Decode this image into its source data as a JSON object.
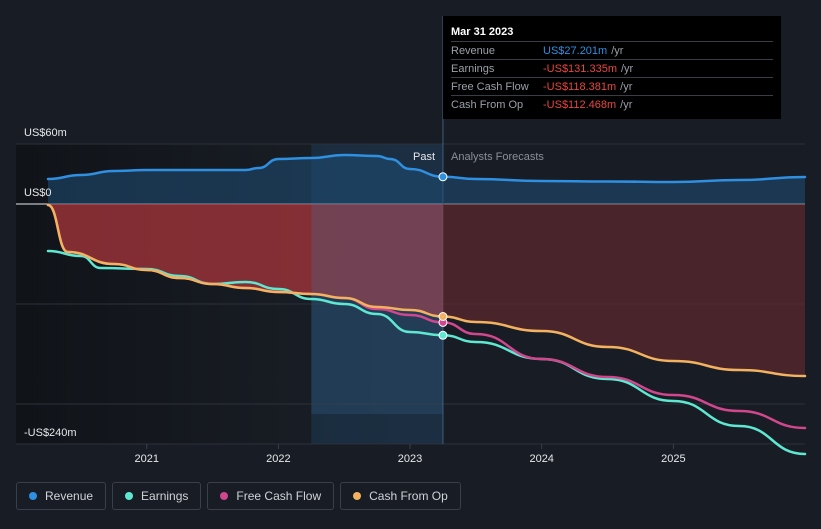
{
  "chart_data": {
    "type": "line",
    "y_unit_label_top": "US$60m",
    "y_unit_label_zero": "US$0",
    "y_unit_label_bottom": "-US$240m",
    "ylim": [
      -240,
      60
    ],
    "xlim": [
      2020.25,
      2026.0
    ],
    "x_ticks": [
      {
        "value": 2021,
        "label": "2021"
      },
      {
        "value": 2022,
        "label": "2022"
      },
      {
        "value": 2023,
        "label": "2023"
      },
      {
        "value": 2024,
        "label": "2024"
      },
      {
        "value": 2025,
        "label": "2025"
      }
    ],
    "gridlines_y": [
      60,
      0,
      -100,
      -200
    ],
    "highlight_range": [
      2022.25,
      2023.25
    ],
    "divider_x": 2023.25,
    "past_label": "Past",
    "forecast_label": "Analysts Forecasts",
    "series": [
      {
        "name": "Revenue",
        "color": "#2f8fe0",
        "fill": "area-top",
        "points": [
          [
            2020.25,
            25
          ],
          [
            2020.5,
            29
          ],
          [
            2020.75,
            33
          ],
          [
            2021.0,
            34
          ],
          [
            2021.25,
            34
          ],
          [
            2021.5,
            34
          ],
          [
            2021.75,
            34
          ],
          [
            2021.85,
            36
          ],
          [
            2022.0,
            45
          ],
          [
            2022.25,
            46
          ],
          [
            2022.5,
            49
          ],
          [
            2022.75,
            48
          ],
          [
            2022.85,
            45
          ],
          [
            2023.0,
            35
          ],
          [
            2023.25,
            27.2
          ],
          [
            2023.5,
            25
          ],
          [
            2024.0,
            23
          ],
          [
            2024.5,
            22.5
          ],
          [
            2025.0,
            22
          ],
          [
            2025.5,
            24
          ],
          [
            2026.0,
            27
          ]
        ]
      },
      {
        "name": "Earnings",
        "color": "#5ee8d2",
        "fill": "none",
        "points": [
          [
            2020.25,
            -47
          ],
          [
            2020.5,
            -52
          ],
          [
            2020.65,
            -64
          ],
          [
            2021.0,
            -65
          ],
          [
            2021.25,
            -72
          ],
          [
            2021.5,
            -80
          ],
          [
            2021.75,
            -78
          ],
          [
            2022.0,
            -85
          ],
          [
            2022.25,
            -95
          ],
          [
            2022.5,
            -100
          ],
          [
            2022.75,
            -110
          ],
          [
            2023.0,
            -128
          ],
          [
            2023.25,
            -131.3
          ],
          [
            2023.5,
            -138
          ],
          [
            2024.0,
            -155
          ],
          [
            2024.5,
            -175
          ],
          [
            2025.0,
            -197
          ],
          [
            2025.5,
            -222
          ],
          [
            2026.0,
            -250
          ]
        ]
      },
      {
        "name": "Free Cash Flow",
        "color": "#d1478e",
        "fill": "none",
        "points": [
          [
            2020.25,
            -1
          ],
          [
            2020.4,
            -48
          ],
          [
            2020.75,
            -60
          ],
          [
            2021.0,
            -66
          ],
          [
            2021.25,
            -74
          ],
          [
            2021.5,
            -80
          ],
          [
            2021.75,
            -84
          ],
          [
            2022.0,
            -88
          ],
          [
            2022.25,
            -90
          ],
          [
            2022.5,
            -94
          ],
          [
            2022.75,
            -105
          ],
          [
            2023.0,
            -111
          ],
          [
            2023.25,
            -118.4
          ],
          [
            2023.5,
            -130
          ],
          [
            2024.0,
            -155
          ],
          [
            2024.5,
            -173
          ],
          [
            2025.0,
            -191
          ],
          [
            2025.5,
            -207
          ],
          [
            2026.0,
            -224
          ]
        ]
      },
      {
        "name": "Cash From Op",
        "color": "#f2b260",
        "fill": "area-bottom",
        "points": [
          [
            2020.25,
            -1
          ],
          [
            2020.4,
            -48
          ],
          [
            2020.75,
            -60
          ],
          [
            2021.0,
            -66
          ],
          [
            2021.25,
            -74
          ],
          [
            2021.5,
            -80
          ],
          [
            2021.75,
            -84
          ],
          [
            2022.0,
            -88
          ],
          [
            2022.25,
            -90
          ],
          [
            2022.5,
            -94
          ],
          [
            2022.75,
            -103
          ],
          [
            2023.0,
            -106
          ],
          [
            2023.25,
            -112.5
          ],
          [
            2023.5,
            -118
          ],
          [
            2024.0,
            -127
          ],
          [
            2024.5,
            -143
          ],
          [
            2025.0,
            -157
          ],
          [
            2025.5,
            -166
          ],
          [
            2026.0,
            -172
          ]
        ]
      }
    ],
    "markers": [
      {
        "series": "Revenue",
        "x": 2023.25,
        "y": 27.2
      },
      {
        "series": "Earnings",
        "x": 2023.25,
        "y": -131.3
      },
      {
        "series": "Free Cash Flow",
        "x": 2023.25,
        "y": -118.4
      },
      {
        "series": "Cash From Op",
        "x": 2023.25,
        "y": -112.5
      }
    ]
  },
  "tooltip": {
    "date": "Mar 31 2023",
    "rows": [
      {
        "label": "Revenue",
        "value": "US$27.201m",
        "unit": "/yr",
        "color": "#2f8fe0"
      },
      {
        "label": "Earnings",
        "value": "-US$131.335m",
        "unit": "/yr",
        "color": "#e8473f"
      },
      {
        "label": "Free Cash Flow",
        "value": "-US$118.381m",
        "unit": "/yr",
        "color": "#e8473f"
      },
      {
        "label": "Cash From Op",
        "value": "-US$112.468m",
        "unit": "/yr",
        "color": "#e8473f"
      }
    ]
  },
  "legend": [
    {
      "label": "Revenue",
      "color": "#2f8fe0"
    },
    {
      "label": "Earnings",
      "color": "#5ee8d2"
    },
    {
      "label": "Free Cash Flow",
      "color": "#d1478e"
    },
    {
      "label": "Cash From Op",
      "color": "#f2b260"
    }
  ]
}
